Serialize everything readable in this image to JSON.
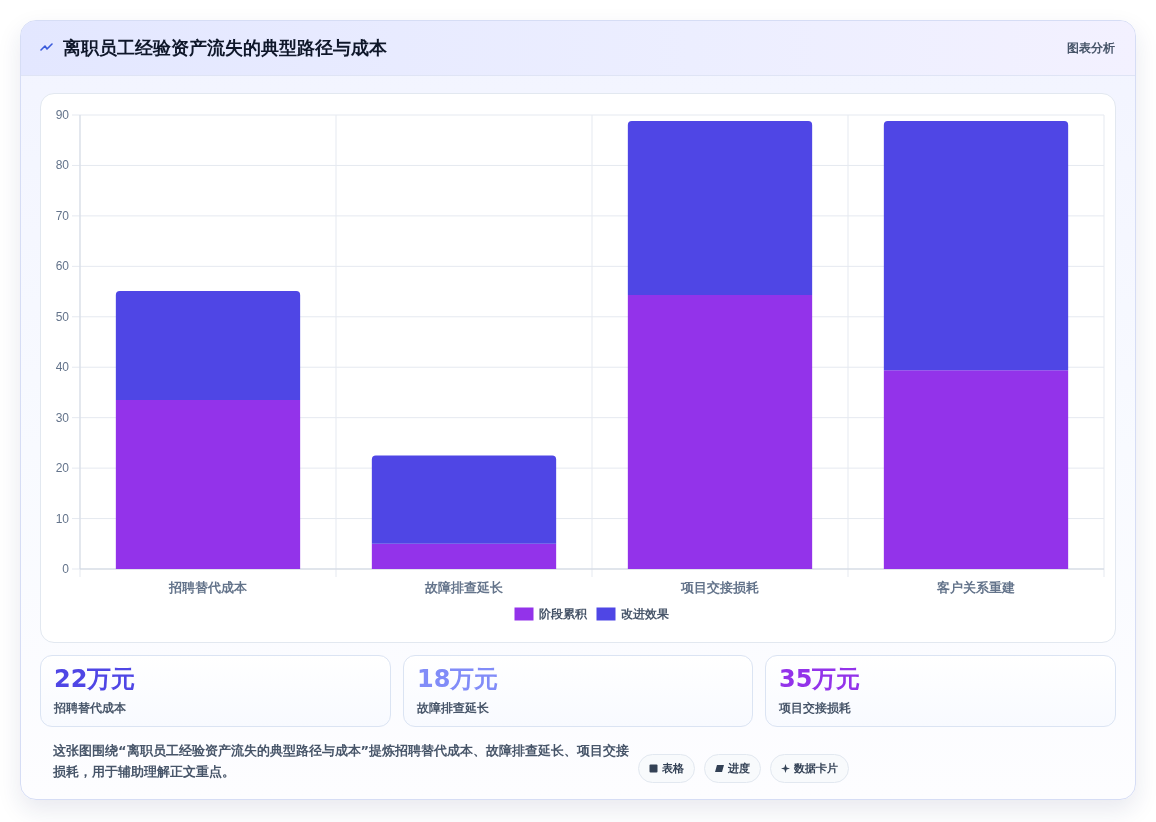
{
  "chart_data": {
    "type": "bar",
    "title": "离职员工经验资产流失的典型路径与成本",
    "categories": [
      "招聘替代成本",
      "故障排查延长",
      "项目交接损耗",
      "客户关系重建"
    ],
    "series": [
      {
        "name": "阶段累积",
        "color": "#9333ea",
        "values": [
          33.5,
          5,
          54.3,
          39.4
        ]
      },
      {
        "name": "改进效果",
        "color": "#4f46e5",
        "values": [
          21.6,
          17.5,
          34.5,
          49.4
        ]
      }
    ],
    "stacked": true,
    "ylim": [
      0,
      90
    ],
    "yticks": [
      0,
      10,
      20,
      30,
      40,
      50,
      60,
      70,
      80,
      90
    ],
    "grid": true,
    "legend": "bottom",
    "annotations": [
      "图表分析",
      "22万元",
      "招聘替代成本",
      "18万元",
      "故障排查延长",
      "35万元",
      "项目交接损耗",
      "这张图围绕“离职员工经验资产流失的典型路径与成本”提炼招聘替代成本、故障排查延长、项目交接损耗，用于辅助理解正文重点。",
      "表格",
      "进度",
      "数据卡片"
    ]
  }
}
